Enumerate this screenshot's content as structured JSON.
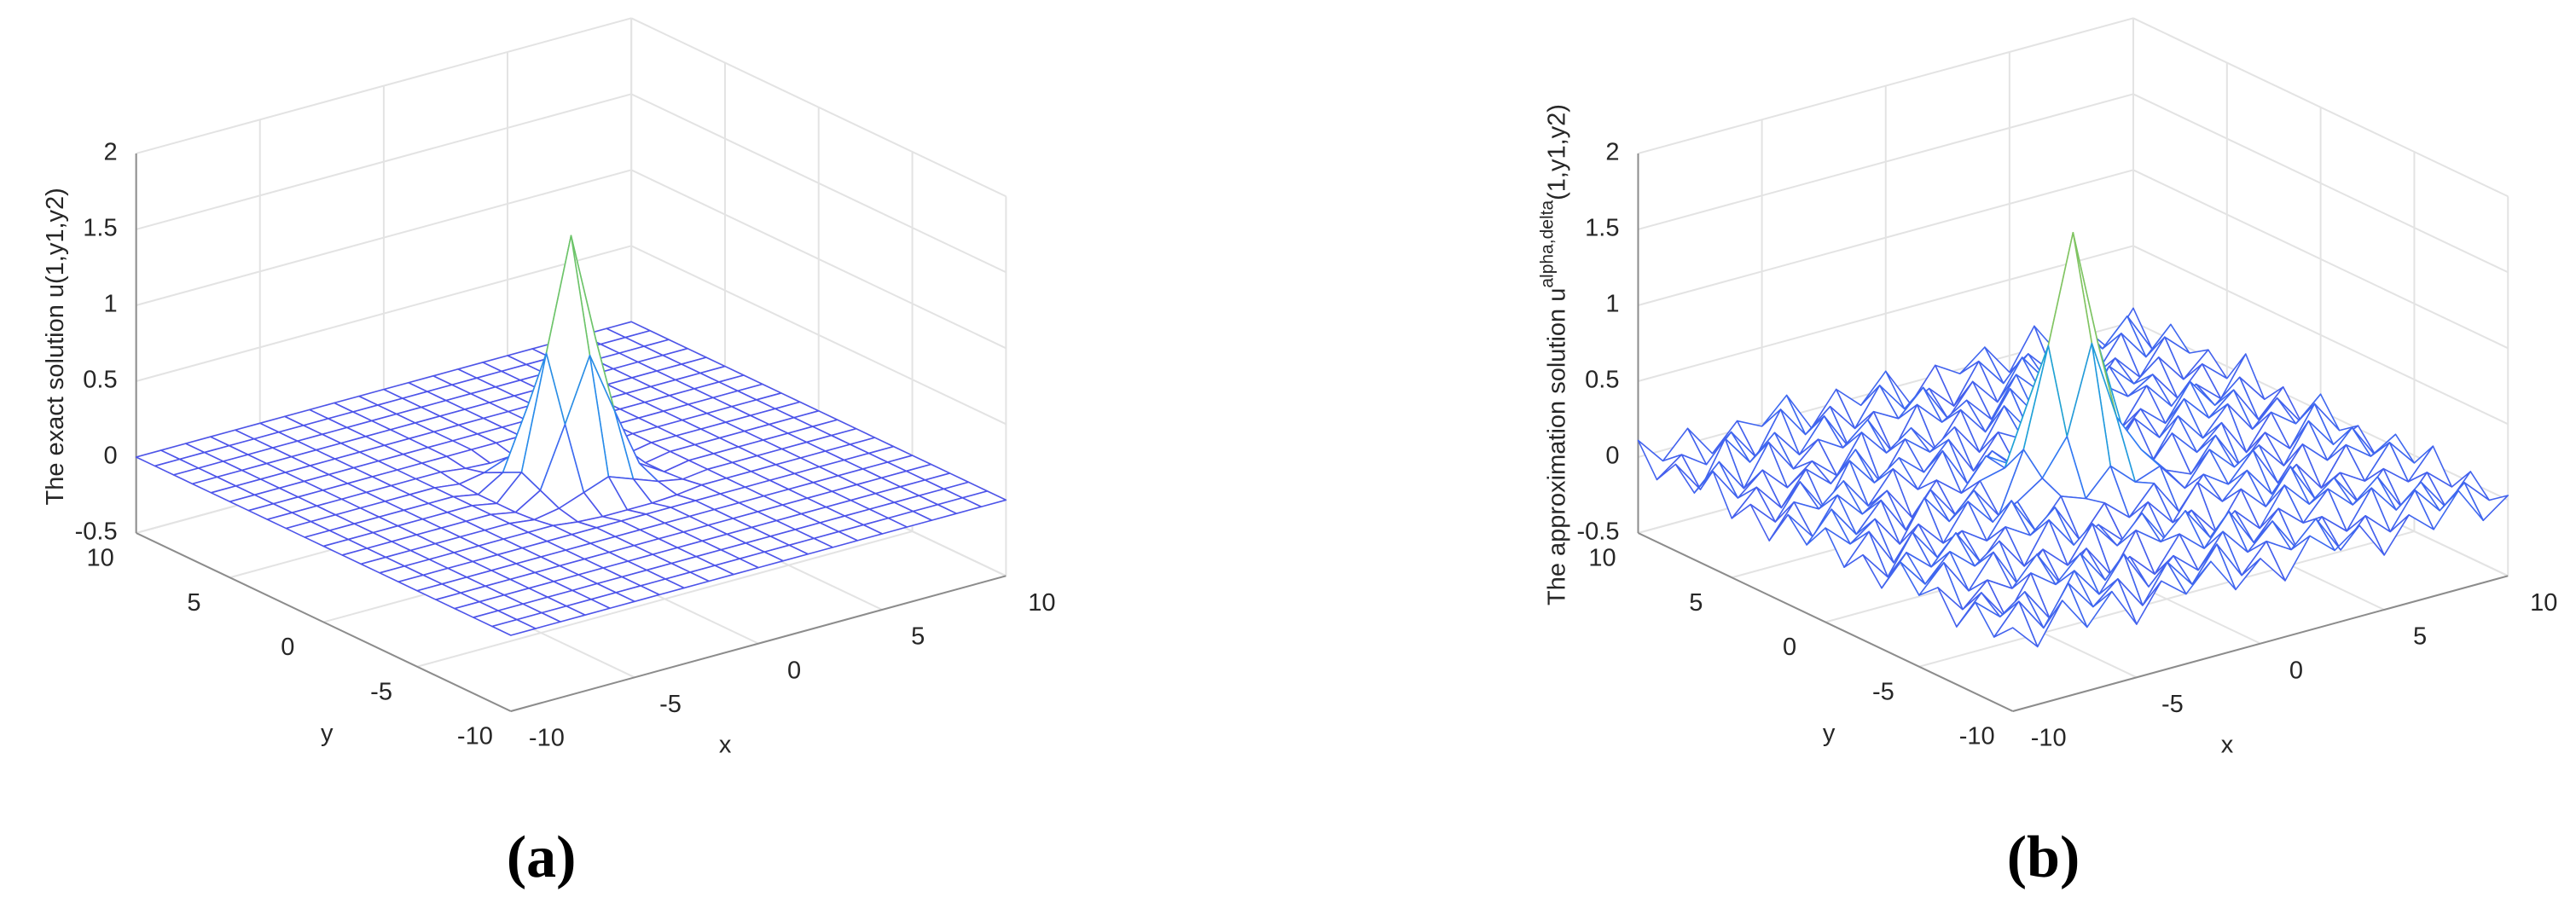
{
  "chart_data": [
    {
      "type": "surface",
      "caption": "(a)",
      "z_label": "The exact solution u(1,y1,y2)",
      "x_label": "x",
      "y_label": "y",
      "xlim": [
        -10,
        10
      ],
      "ylim": [
        -10,
        10
      ],
      "zlim": [
        -0.5,
        2
      ],
      "xticks": [
        -10,
        -5,
        0,
        5,
        10
      ],
      "yticks": [
        -10,
        -5,
        0,
        5,
        10
      ],
      "zticks": [
        -0.5,
        0,
        0.5,
        1,
        1.5,
        2
      ],
      "grid": true,
      "colormap": [
        "#5050e8",
        "#2f7df6",
        "#17b4c8",
        "#6cc46a",
        "#f4c634",
        "#f9fb0e"
      ],
      "x": [
        -10,
        -9,
        -8,
        -7,
        -6,
        -5,
        -4,
        -3,
        -2,
        -1,
        0,
        1,
        2,
        3,
        4,
        5,
        6,
        7,
        8,
        9,
        10
      ],
      "y": [
        -10,
        -9,
        -8,
        -7,
        -6,
        -5,
        -4,
        -3,
        -2,
        -1,
        0,
        1,
        2,
        3,
        4,
        5,
        6,
        7,
        8,
        9,
        10
      ],
      "z": [
        [
          0,
          0,
          0,
          0,
          0,
          0,
          0,
          0,
          0,
          0,
          0,
          0,
          0,
          0,
          0,
          0,
          0,
          0,
          0,
          0,
          0
        ],
        [
          0,
          0,
          0,
          0,
          0,
          0,
          0,
          0,
          0,
          0,
          0,
          0,
          0,
          0,
          0,
          0,
          0,
          0,
          0,
          0,
          0
        ],
        [
          0,
          0,
          0,
          0,
          0,
          0,
          0,
          0,
          0,
          0,
          0,
          0,
          0,
          0,
          0,
          0,
          0,
          0,
          0,
          0,
          0
        ],
        [
          0,
          0,
          0,
          0,
          0,
          0,
          0,
          0,
          0,
          0,
          0,
          0,
          0,
          0,
          0,
          0,
          0,
          0,
          0,
          0,
          0
        ],
        [
          0,
          0,
          0,
          0,
          0,
          0,
          0,
          0,
          0,
          0,
          0,
          0,
          0,
          0,
          0,
          0,
          0,
          0,
          0,
          0,
          0
        ],
        [
          0,
          0,
          0,
          0,
          0,
          0,
          0,
          0,
          0,
          0,
          0,
          0,
          0,
          0,
          0,
          0,
          0,
          0,
          0,
          0,
          0
        ],
        [
          0,
          0,
          0,
          0,
          0,
          0,
          0,
          0,
          0,
          0,
          0,
          0,
          0,
          0,
          0,
          0,
          0,
          0,
          0,
          0,
          0
        ],
        [
          0,
          0,
          0,
          0,
          0,
          0,
          0,
          0,
          -0.02,
          -0.03,
          -0.03,
          -0.03,
          -0.02,
          0,
          0,
          0,
          0,
          0,
          0,
          0,
          0
        ],
        [
          0,
          0,
          0,
          0,
          0,
          0,
          0,
          -0.02,
          0.01,
          0.07,
          0.13,
          0.07,
          0.01,
          -0.02,
          0,
          0,
          0,
          0,
          0,
          0,
          0
        ],
        [
          0,
          0,
          0,
          0,
          0,
          0,
          0,
          -0.03,
          0.07,
          0.46,
          0.87,
          0.46,
          0.07,
          -0.03,
          0,
          0,
          0,
          0,
          0,
          0,
          0
        ],
        [
          0,
          0,
          0,
          0,
          0,
          0,
          0,
          -0.03,
          0.13,
          0.87,
          1.6,
          0.87,
          0.13,
          -0.03,
          0,
          0,
          0,
          0,
          0,
          0,
          0
        ],
        [
          0,
          0,
          0,
          0,
          0,
          0,
          0,
          -0.03,
          0.07,
          0.46,
          0.87,
          0.46,
          0.07,
          -0.03,
          0,
          0,
          0,
          0,
          0,
          0,
          0
        ],
        [
          0,
          0,
          0,
          0,
          0,
          0,
          0,
          -0.02,
          0.01,
          0.07,
          0.13,
          0.07,
          0.01,
          -0.02,
          0,
          0,
          0,
          0,
          0,
          0,
          0
        ],
        [
          0,
          0,
          0,
          0,
          0,
          0,
          0,
          0,
          -0.02,
          -0.03,
          -0.03,
          -0.03,
          -0.02,
          0,
          0,
          0,
          0,
          0,
          0,
          0,
          0
        ],
        [
          0,
          0,
          0,
          0,
          0,
          0,
          0,
          0,
          0,
          0,
          0,
          0,
          0,
          0,
          0,
          0,
          0,
          0,
          0,
          0,
          0
        ],
        [
          0,
          0,
          0,
          0,
          0,
          0,
          0,
          0,
          0,
          0,
          0,
          0,
          0,
          0,
          0,
          0,
          0,
          0,
          0,
          0,
          0
        ],
        [
          0,
          0,
          0,
          0,
          0,
          0,
          0,
          0,
          0,
          0,
          0,
          0,
          0,
          0,
          0,
          0,
          0,
          0,
          0,
          0,
          0
        ],
        [
          0,
          0,
          0,
          0,
          0,
          0,
          0,
          0,
          0,
          0,
          0,
          0,
          0,
          0,
          0,
          0,
          0,
          0,
          0,
          0,
          0
        ],
        [
          0,
          0,
          0,
          0,
          0,
          0,
          0,
          0,
          0,
          0,
          0,
          0,
          0,
          0,
          0,
          0,
          0,
          0,
          0,
          0,
          0
        ],
        [
          0,
          0,
          0,
          0,
          0,
          0,
          0,
          0,
          0,
          0,
          0,
          0,
          0,
          0,
          0,
          0,
          0,
          0,
          0,
          0,
          0
        ],
        [
          0,
          0,
          0,
          0,
          0,
          0,
          0,
          0,
          0,
          0,
          0,
          0,
          0,
          0,
          0,
          0,
          0,
          0,
          0,
          0,
          0
        ]
      ]
    },
    {
      "type": "surface",
      "caption": "(b)",
      "z_label": "The approximation solution u",
      "z_label_superscript": "alpha,delta",
      "z_label_suffix": "(1,y1,y2)",
      "x_label": "x",
      "y_label": "y",
      "xlim": [
        -10,
        10
      ],
      "ylim": [
        -10,
        10
      ],
      "zlim": [
        -0.5,
        2
      ],
      "xticks": [
        -10,
        -5,
        0,
        5,
        10
      ],
      "yticks": [
        -10,
        -5,
        0,
        5,
        10
      ],
      "zticks": [
        -0.5,
        0,
        0.5,
        1,
        1.5,
        2
      ],
      "grid": true,
      "colormap": [
        "#5050e8",
        "#2f7df6",
        "#17b4c8",
        "#6cc46a",
        "#f4c634",
        "#f9fb0e"
      ],
      "x": [
        -10,
        -9,
        -8,
        -7,
        -6,
        -5,
        -4,
        -3,
        -2,
        -1,
        0,
        1,
        2,
        3,
        4,
        5,
        6,
        7,
        8,
        9,
        10
      ],
      "y": [
        -10,
        -9,
        -8,
        -7,
        -6,
        -5,
        -4,
        -3,
        -2,
        -1,
        0,
        1,
        2,
        3,
        4,
        5,
        6,
        7,
        8,
        9,
        10
      ],
      "z": [
        [
          0.05,
          -0.12,
          0.14,
          -0.08,
          0.11,
          -0.15,
          0.09,
          -0.04,
          0.13,
          -0.1,
          0.06,
          -0.13,
          0.12,
          -0.02,
          0.1,
          -0.14,
          0.08,
          -0.06,
          0.15,
          -0.09,
          0.03
        ],
        [
          -0.07,
          0.12,
          -0.1,
          0.15,
          -0.05,
          0.09,
          -0.13,
          0.11,
          -0.08,
          0.14,
          -0.11,
          0.07,
          -0.03,
          0.13,
          -0.12,
          0.06,
          -0.09,
          0.14,
          -0.04,
          0.1,
          -0.06
        ],
        [
          0.1,
          -0.04,
          0.08,
          -0.14,
          0.13,
          -0.07,
          0.15,
          -0.11,
          0.05,
          -0.09,
          0.12,
          -0.06,
          0.1,
          -0.13,
          0.04,
          -0.1,
          0.14,
          -0.05,
          0.09,
          -0.12,
          0.07
        ],
        [
          -0.12,
          0.06,
          -0.15,
          0.1,
          -0.02,
          0.14,
          -0.08,
          0.03,
          -0.13,
          0.09,
          -0.05,
          0.15,
          -0.1,
          0.08,
          -0.06,
          0.12,
          -0.03,
          0.11,
          -0.14,
          0.05,
          -0.09
        ],
        [
          0.08,
          -0.11,
          0.04,
          -0.06,
          0.12,
          -0.13,
          0.07,
          -0.15,
          0.1,
          -0.02,
          0.14,
          -0.08,
          0.05,
          -0.11,
          0.13,
          -0.04,
          0.09,
          -0.12,
          0.06,
          -0.07,
          0.12
        ],
        [
          -0.03,
          0.14,
          -0.09,
          0.12,
          -0.14,
          0.05,
          -0.1,
          0.13,
          -0.06,
          0.11,
          -0.12,
          0.04,
          -0.15,
          0.09,
          -0.07,
          0.15,
          -0.11,
          0.02,
          -0.08,
          0.13,
          -0.05
        ],
        [
          0.13,
          -0.06,
          0.11,
          -0.03,
          0.09,
          -0.12,
          0.14,
          -0.07,
          0.02,
          -0.13,
          0.08,
          -0.1,
          0.12,
          -0.05,
          0.11,
          -0.09,
          0.06,
          -0.14,
          0.1,
          -0.02,
          0.08
        ],
        [
          -0.1,
          0.09,
          -0.05,
          0.13,
          -0.11,
          0.08,
          -0.02,
          0.12,
          -0.14,
          0.06,
          -0.08,
          0.1,
          -0.13,
          0.07,
          -0.04,
          0.14,
          -0.12,
          0.09,
          -0.06,
          0.11,
          -0.13
        ],
        [
          0.06,
          -0.13,
          0.12,
          -0.09,
          0.04,
          -0.07,
          0.15,
          -0.1,
          0.09,
          0.03,
          0.2,
          0.05,
          0.11,
          -0.08,
          0.13,
          -0.03,
          0.07,
          -0.11,
          0.14,
          -0.06,
          0.02
        ],
        [
          -0.08,
          0.11,
          -0.14,
          0.07,
          -0.1,
          0.13,
          -0.05,
          0.04,
          0.15,
          0.38,
          0.95,
          0.42,
          0.16,
          -0.02,
          -0.09,
          0.12,
          -0.13,
          0.05,
          -0.1,
          0.15,
          -0.07
        ],
        [
          0.12,
          -0.03,
          0.09,
          -0.12,
          0.14,
          -0.06,
          0.1,
          -0.11,
          0.28,
          0.92,
          1.62,
          0.85,
          0.24,
          -0.07,
          0.12,
          -0.05,
          0.1,
          -0.14,
          0.08,
          -0.04,
          0.11
        ],
        [
          -0.05,
          0.14,
          -0.07,
          0.11,
          -0.13,
          0.09,
          -0.12,
          0.06,
          0.1,
          0.52,
          0.83,
          0.41,
          0.18,
          0.05,
          -0.11,
          0.13,
          -0.06,
          0.12,
          -0.09,
          0.07,
          -0.14
        ],
        [
          0.09,
          -0.1,
          0.13,
          -0.04,
          0.07,
          -0.15,
          0.05,
          -0.08,
          0.12,
          0.02,
          0.21,
          0.09,
          0.06,
          -0.12,
          0.1,
          -0.07,
          0.14,
          -0.03,
          0.11,
          -0.13,
          0.04
        ],
        [
          -0.14,
          0.07,
          -0.02,
          0.12,
          -0.09,
          0.11,
          -0.07,
          0.14,
          -0.12,
          0.05,
          -0.1,
          0.08,
          -0.04,
          0.13,
          -0.11,
          0.06,
          -0.08,
          0.15,
          -0.05,
          0.09,
          -0.1
        ],
        [
          0.04,
          -0.12,
          0.1,
          -0.13,
          0.15,
          -0.04,
          0.08,
          -0.06,
          0.11,
          -0.14,
          0.07,
          -0.02,
          0.13,
          -0.09,
          0.05,
          -0.12,
          0.11,
          -0.07,
          0.03,
          -0.11,
          0.14
        ],
        [
          -0.11,
          0.05,
          -0.13,
          0.08,
          -0.06,
          0.12,
          -0.14,
          0.1,
          -0.03,
          0.09,
          -0.12,
          0.14,
          -0.07,
          0.04,
          -0.13,
          0.1,
          -0.02,
          0.08,
          -0.12,
          0.06,
          -0.08
        ],
        [
          0.14,
          -0.08,
          0.06,
          -0.1,
          0.03,
          -0.11,
          0.13,
          -0.05,
          0.07,
          -0.12,
          0.1,
          -0.09,
          0.15,
          -0.06,
          0.08,
          -0.14,
          0.12,
          -0.04,
          0.09,
          -0.1,
          0.05
        ],
        [
          -0.06,
          0.1,
          -0.12,
          0.14,
          -0.08,
          0.07,
          -0.03,
          0.11,
          -0.15,
          0.12,
          -0.04,
          0.06,
          -0.11,
          0.14,
          -0.02,
          0.09,
          -0.13,
          0.07,
          -0.1,
          0.12,
          -0.03
        ],
        [
          0.07,
          -0.14,
          0.15,
          -0.05,
          0.1,
          -0.09,
          0.12,
          -0.13,
          0.06,
          -0.03,
          0.13,
          -0.12,
          0.08,
          -0.1,
          0.15,
          -0.05,
          0.04,
          -0.09,
          0.13,
          -0.07,
          0.1
        ],
        [
          -0.09,
          0.03,
          -0.08,
          0.09,
          -0.12,
          0.15,
          -0.06,
          0.08,
          -0.11,
          0.13,
          -0.07,
          0.02,
          -0.14,
          0.11,
          -0.08,
          0.07,
          -0.1,
          0.13,
          -0.03,
          0.14,
          -0.12
        ],
        [
          0.11,
          -0.07,
          0.1,
          -0.11,
          0.06,
          -0.02,
          0.14,
          -0.12,
          0.09,
          -0.06,
          0.12,
          -0.14,
          0.07,
          -0.03,
          0.1,
          -0.11,
          0.15,
          -0.08,
          0.05,
          -0.13,
          0.09
        ]
      ]
    }
  ]
}
